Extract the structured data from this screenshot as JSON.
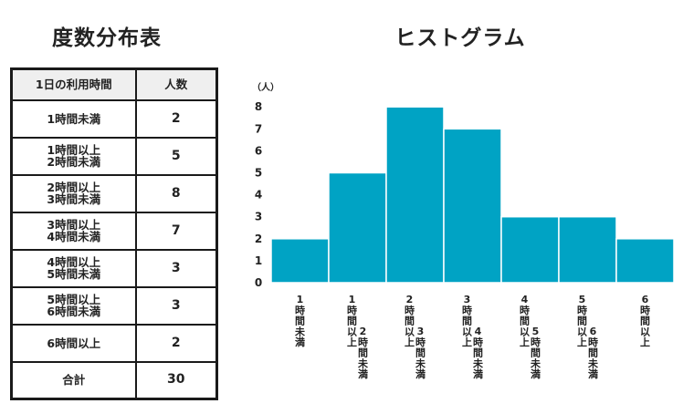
{
  "table": {
    "title": "度数分布表",
    "headers": [
      "1日の利用時間",
      "人数"
    ],
    "rows": [
      {
        "class_lines": [
          "1時間未満"
        ],
        "count": "2"
      },
      {
        "class_lines": [
          "1時間以上",
          "2時間未満"
        ],
        "count": "5"
      },
      {
        "class_lines": [
          "2時間以上",
          "3時間未満"
        ],
        "count": "8"
      },
      {
        "class_lines": [
          "3時間以上",
          "4時間未満"
        ],
        "count": "7"
      },
      {
        "class_lines": [
          "4時間以上",
          "5時間未満"
        ],
        "count": "3"
      },
      {
        "class_lines": [
          "5時間以上",
          "6時間未満"
        ],
        "count": "3"
      },
      {
        "class_lines": [
          "6時間以上"
        ],
        "count": "2"
      }
    ],
    "total_label": "合計",
    "total_value": "30"
  },
  "chart_data": {
    "type": "bar",
    "title": "ヒストグラム",
    "ylabel": "（人）",
    "categories": [
      "1時間未満",
      "1時間以上2時間未満",
      "2時間以上3時間未満",
      "3時間以上4時間未満",
      "4時間以上5時間未満",
      "5時間以上6時間未満",
      "6時間以上"
    ],
    "category_label_columns": [
      [
        "1時間未満"
      ],
      [
        "1時間以上",
        "2時間未満"
      ],
      [
        "2時間以上",
        "3時間未満"
      ],
      [
        "3時間以上",
        "4時間未満"
      ],
      [
        "4時間以上",
        "5時間未満"
      ],
      [
        "5時間以上",
        "6時間未満"
      ],
      [
        "6時間以上"
      ]
    ],
    "values": [
      2,
      5,
      8,
      7,
      3,
      3,
      2
    ],
    "ylim": [
      0,
      8
    ],
    "yticks": [
      0,
      1,
      2,
      3,
      4,
      5,
      6,
      7,
      8
    ],
    "grid": false,
    "bar_color": "#00a3c4"
  }
}
